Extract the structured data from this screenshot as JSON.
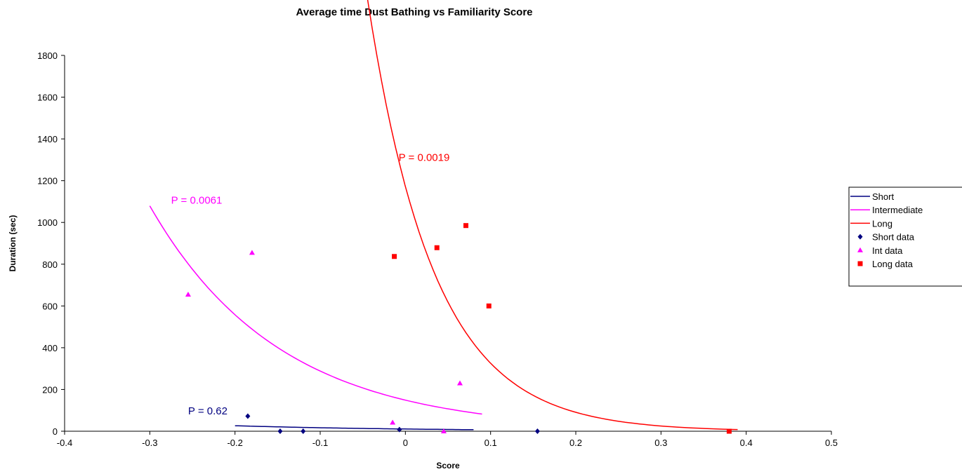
{
  "chart_data": {
    "type": "scatter",
    "title": "Average time Dust Bathing vs Familiarity Score",
    "xlabel": "Score",
    "ylabel": "Duration (sec)",
    "xlim": [
      -0.4,
      0.5
    ],
    "ylim": [
      0,
      1800
    ],
    "xticks": [
      -0.4,
      -0.3,
      -0.2,
      -0.1,
      0,
      0.1,
      0.2,
      0.3,
      0.4,
      0.5
    ],
    "yticks": [
      0,
      200,
      400,
      600,
      800,
      1000,
      1200,
      1400,
      1600,
      1800
    ],
    "xtick_labels": [
      "-0.4",
      "-0.3",
      "-0.2",
      "-0.1",
      "0",
      "0.1",
      "0.2",
      "0.3",
      "0.4",
      "0.5"
    ],
    "ytick_labels": [
      "0",
      "200",
      "400",
      "600",
      "800",
      "1000",
      "1200",
      "1400",
      "1600",
      "1800"
    ],
    "grid": false,
    "legend_position": "right",
    "series": [
      {
        "name": "Short",
        "kind": "line",
        "color": "#000080",
        "fit": {
          "a": 10.6,
          "b": -4.55,
          "x_start": -0.2,
          "x_end": 0.08
        }
      },
      {
        "name": "Intermediate",
        "kind": "line",
        "color": "#ff00ff",
        "fit": {
          "a": 149,
          "b": -6.6,
          "x_start": -0.3,
          "x_end": 0.09
        }
      },
      {
        "name": "Long",
        "kind": "line",
        "color": "#ff0000",
        "fit": {
          "a": 1172,
          "b": -12.8,
          "x_start": -0.05,
          "x_end": 0.39
        }
      },
      {
        "name": "Short data",
        "kind": "points",
        "marker": "diamond",
        "color": "#000080",
        "x": [
          -0.185,
          -0.147,
          -0.12,
          -0.007,
          0.155
        ],
        "y": [
          72,
          0,
          0,
          8,
          0
        ]
      },
      {
        "name": "Int data",
        "kind": "points",
        "marker": "triangle",
        "color": "#ff00ff",
        "x": [
          -0.255,
          -0.18,
          -0.015,
          0.045,
          0.064
        ],
        "y": [
          655,
          855,
          42,
          0,
          230
        ]
      },
      {
        "name": "Long data",
        "kind": "points",
        "marker": "square",
        "color": "#ff0000",
        "x": [
          -0.013,
          0.037,
          0.071,
          0.098,
          0.38
        ],
        "y": [
          837,
          879,
          985,
          600,
          0
        ]
      }
    ],
    "annotations": [
      {
        "text": "P = 0.62",
        "color": "#000080",
        "x": -0.255,
        "y": 80
      },
      {
        "text": "P = 0.0061",
        "color": "#ff00ff",
        "x": -0.275,
        "y": 1090
      },
      {
        "text": "P = 0.0019",
        "color": "#ff0000",
        "x": -0.008,
        "y": 1295
      }
    ]
  }
}
